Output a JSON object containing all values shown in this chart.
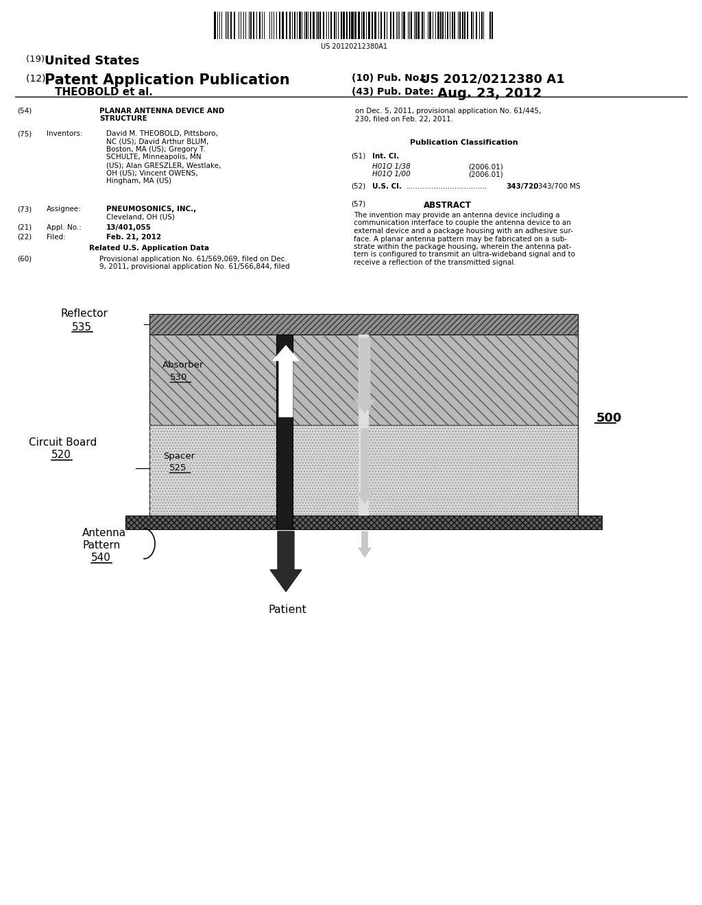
{
  "barcode_text": "US 20120212380A1",
  "header": {
    "us_label": "(19) United States",
    "pub_label": "(12) Patent Application Publication",
    "author": "    THEOBOLD et al.",
    "pub_no_label": "(10) Pub. No.:",
    "pub_no": "US 2012/0212380 A1",
    "pub_date_label": "(43) Pub. Date:",
    "pub_date": "Aug. 23, 2012"
  },
  "left_col": {
    "item54_label": "(54)",
    "item54_title1": "PLANAR ANTENNA DEVICE AND",
    "item54_title2": "STRUCTURE",
    "item75_label": "(75)",
    "item75_field": "Inventors:",
    "item73_label": "(73)",
    "item73_field": "Assignee:",
    "item73_bold": "PNEUMOSONICS, INC.,",
    "item73_text": "Cleveland, OH (US)",
    "item21_label": "(21)",
    "item21_field": "Appl. No.:",
    "item21_text": "13/401,055",
    "item22_label": "(22)",
    "item22_field": "Filed:",
    "item22_text": "Feb. 21, 2012",
    "related_header": "Related U.S. Application Data",
    "item60_label": "(60)",
    "item60_line1": "Provisional application No. 61/569,069, filed on Dec.",
    "item60_line2": "9, 2011, provisional application No. 61/566,844, filed"
  },
  "inventors": [
    {
      "bold": "David M. THEOBOLD",
      "normal": ", Pittsboro,"
    },
    {
      "bold": "",
      "normal": "NC (US); "
    },
    {
      "bold": "David Arthur BLUM",
      "normal": ","
    },
    {
      "bold": "",
      "normal": "Boston, MA (US); Gregory T."
    },
    {
      "bold": "SCHULTE",
      "normal": ", Minneapolis, MN"
    },
    {
      "bold": "",
      "normal": "(US); Alan "
    },
    {
      "bold": "GRESZLER",
      "normal": ", Westlake,"
    },
    {
      "bold": "",
      "normal": "OH (US); Vincent "
    },
    {
      "bold": "OWENS",
      "normal": ","
    },
    {
      "bold": "",
      "normal": "Hingham, MA (US)"
    }
  ],
  "inventors_lines": [
    "David M. THEOBOLD, Pittsboro,",
    "NC (US); David Arthur BLUM,",
    "Boston, MA (US); Gregory T.",
    "SCHULTE, Minneapolis, MN",
    "(US); Alan GRESZLER, Westlake,",
    "OH (US); Vincent OWENS,",
    "Hingham, MA (US)"
  ],
  "right_col": {
    "continuation_line1": "on Dec. 5, 2011, provisional application No. 61/445,",
    "continuation_line2": "230, filed on Feb. 22, 2011.",
    "pub_class_header": "Publication Classification",
    "item51_label": "(51)",
    "item51_field": "Int. Cl.",
    "item51_class1": "H01Q 1/38",
    "item51_year1": "(2006.01)",
    "item51_class2": "H01Q 1/00",
    "item51_year2": "(2006.01)",
    "item52_label": "(52)",
    "item52_field": "U.S. Cl.",
    "item52_dots": "...................................",
    "item52_class": "343/720",
    "item52_class2": "; 343/700 MS",
    "item57_label": "(57)",
    "item57_header": "ABSTRACT",
    "abstract_lines": [
      "The invention may provide an antenna device including a",
      "communication interface to couple the antenna device to an",
      "external device and a package housing with an adhesive sur-",
      "face. A planar antenna pattern may be fabricated on a sub-",
      "strate within the package housing, wherein the antenna pat-",
      "tern is configured to transmit an ultra-wideband signal and to",
      "receive a reflection of the transmitted signal."
    ]
  },
  "diagram": {
    "label_500": "500",
    "label_reflector": "Reflector",
    "label_535": "535",
    "label_absorber": "Absorber",
    "label_530": "530",
    "label_circuit": "Circuit Board",
    "label_520": "520",
    "label_spacer": "Spacer",
    "label_525": "525",
    "label_antenna_1": "Antenna",
    "label_antenna_2": "Pattern",
    "label_540": "540",
    "label_patient": "Patient"
  },
  "bg_color": "#ffffff"
}
